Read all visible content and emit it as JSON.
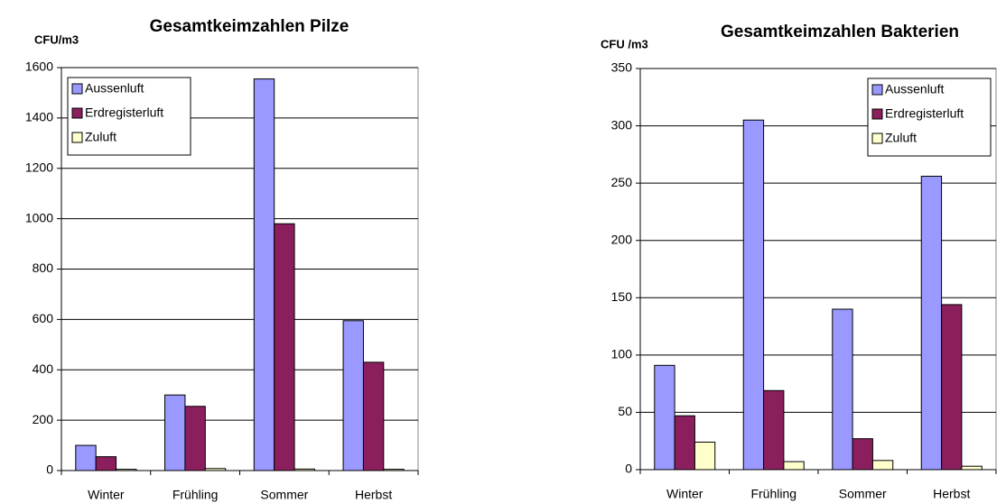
{
  "chart_data": [
    {
      "type": "bar",
      "title": "Gesamtkeimzahlen Pilze",
      "y_label": "CFU/m3",
      "categories": [
        "Winter",
        "Frühling",
        "Sommer",
        "Herbst"
      ],
      "series": [
        {
          "name": "Aussenluft",
          "color": "#9999ff",
          "values": [
            100,
            300,
            1555,
            595
          ]
        },
        {
          "name": "Erdregisterluft",
          "color": "#8b1f5e",
          "values": [
            55,
            255,
            980,
            430
          ]
        },
        {
          "name": "Zuluft",
          "color": "#ffffcc",
          "values": [
            5,
            8,
            6,
            5
          ]
        }
      ],
      "ylim": [
        0,
        1600
      ],
      "yticks": [
        0,
        200,
        400,
        600,
        800,
        1000,
        1200,
        1400,
        1600
      ],
      "grid": true,
      "legend": "upper left"
    },
    {
      "type": "bar",
      "title": "Gesamtkeimzahlen Bakterien",
      "y_label": "CFU /m3",
      "categories": [
        "Winter",
        "Frühling",
        "Sommer",
        "Herbst"
      ],
      "series": [
        {
          "name": "Aussenluft",
          "color": "#9999ff",
          "values": [
            91,
            305,
            140,
            256
          ]
        },
        {
          "name": "Erdregisterluft",
          "color": "#8b1f5e",
          "values": [
            47,
            69,
            27,
            144
          ]
        },
        {
          "name": "Zuluft",
          "color": "#ffffcc",
          "values": [
            24,
            7,
            8,
            3
          ]
        }
      ],
      "ylim": [
        0,
        350
      ],
      "yticks": [
        0,
        50,
        100,
        150,
        200,
        250,
        300,
        350
      ],
      "grid": true,
      "legend": "upper right"
    }
  ]
}
